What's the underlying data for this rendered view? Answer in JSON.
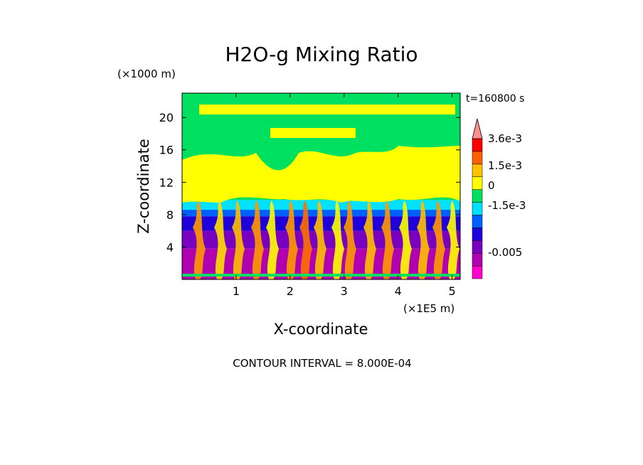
{
  "chart_data": {
    "type": "heatmap",
    "title": "H2O-g Mixing Ratio",
    "xlabel": "X-coordinate",
    "ylabel": "Z-coordinate",
    "x_unit": "(×1E5 m)",
    "y_unit": "(×1000 m)",
    "time_label": "t=160800 s",
    "footer": "CONTOUR INTERVAL = 8.000E-04",
    "x_ticks": [
      "1",
      "2",
      "3",
      "4",
      "5"
    ],
    "x_tick_values": [
      1,
      2,
      3,
      4,
      5
    ],
    "xlim": [
      0,
      5.15
    ],
    "y_ticks": [
      "4",
      "8",
      "12",
      "16",
      "20"
    ],
    "y_tick_values": [
      4,
      8,
      12,
      16,
      20
    ],
    "ylim": [
      0,
      23
    ],
    "contour_interval": 0.0008,
    "colorbar": {
      "labels": [
        "3.6e-3",
        "1.5e-3",
        "0",
        "-1.5e-3",
        "-0.005"
      ],
      "colors_bottom_to_top": [
        "#ff00d0",
        "#b000b0",
        "#7a00c0",
        "#2000d8",
        "#0060ff",
        "#00e0ff",
        "#00e060",
        "#ffff00",
        "#ffc000",
        "#ff6000",
        "#ff0000",
        "#ff9090"
      ]
    },
    "bands_bottom_to_top": [
      {
        "color": "#b000b0",
        "from_z": 0,
        "to_z": 3.8
      },
      {
        "color": "#7a00c0",
        "from_z": 3.8,
        "to_z": 6
      },
      {
        "color": "#2000d8",
        "from_z": 6,
        "to_z": 7.8
      },
      {
        "color": "#0060ff",
        "from_z": 7.8,
        "to_z": 8.6
      },
      {
        "color": "#00e0ff",
        "from_z": 8.6,
        "to_z": 9.8
      },
      {
        "color": "#00e060",
        "from_z": 9.8,
        "to_z": 23
      }
    ]
  }
}
